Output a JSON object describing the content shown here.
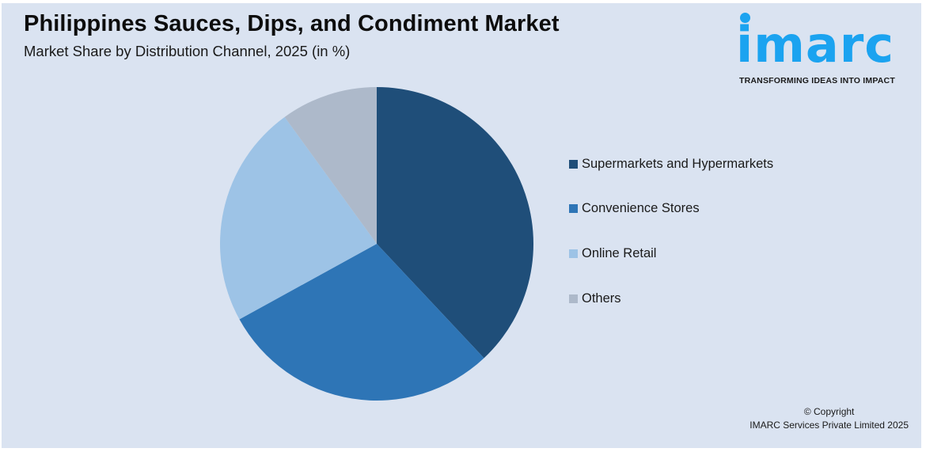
{
  "header": {
    "title": "Philippines Sauces, Dips, and Condiment Market",
    "subtitle": "Market Share by Distribution Channel, 2025 (in %)"
  },
  "logo": {
    "wordmark": "imarc",
    "tagline": "TRANSFORMING IDEAS INTO IMPACT",
    "color": "#1BA3F0"
  },
  "legend": {
    "items": [
      {
        "label": "Supermarkets and Hypermarkets",
        "color": "#1F4E79"
      },
      {
        "label": "Convenience Stores",
        "color": "#2E75B6"
      },
      {
        "label": "Online Retail",
        "color": "#9DC3E6"
      },
      {
        "label": "Others",
        "color": "#ADB9CA"
      }
    ]
  },
  "footer": {
    "copyright_line1": "© Copyright",
    "copyright_line2": "IMARC Services Private Limited 2025"
  },
  "chart_data": {
    "type": "pie",
    "title": "Philippines Sauces, Dips, and Condiment Market",
    "subtitle": "Market Share by Distribution Channel, 2025 (in %)",
    "categories": [
      "Supermarkets and Hypermarkets",
      "Convenience Stores",
      "Online Retail",
      "Others"
    ],
    "values": [
      38,
      29,
      23,
      10
    ],
    "colors": [
      "#1F4E79",
      "#2E75B6",
      "#9DC3E6",
      "#ADB9CA"
    ],
    "start_angle": "12 o'clock",
    "direction": "clockwise",
    "data_labels": false,
    "legend_position": "right",
    "center": [
      476,
      308
    ],
    "radius": 198
  }
}
